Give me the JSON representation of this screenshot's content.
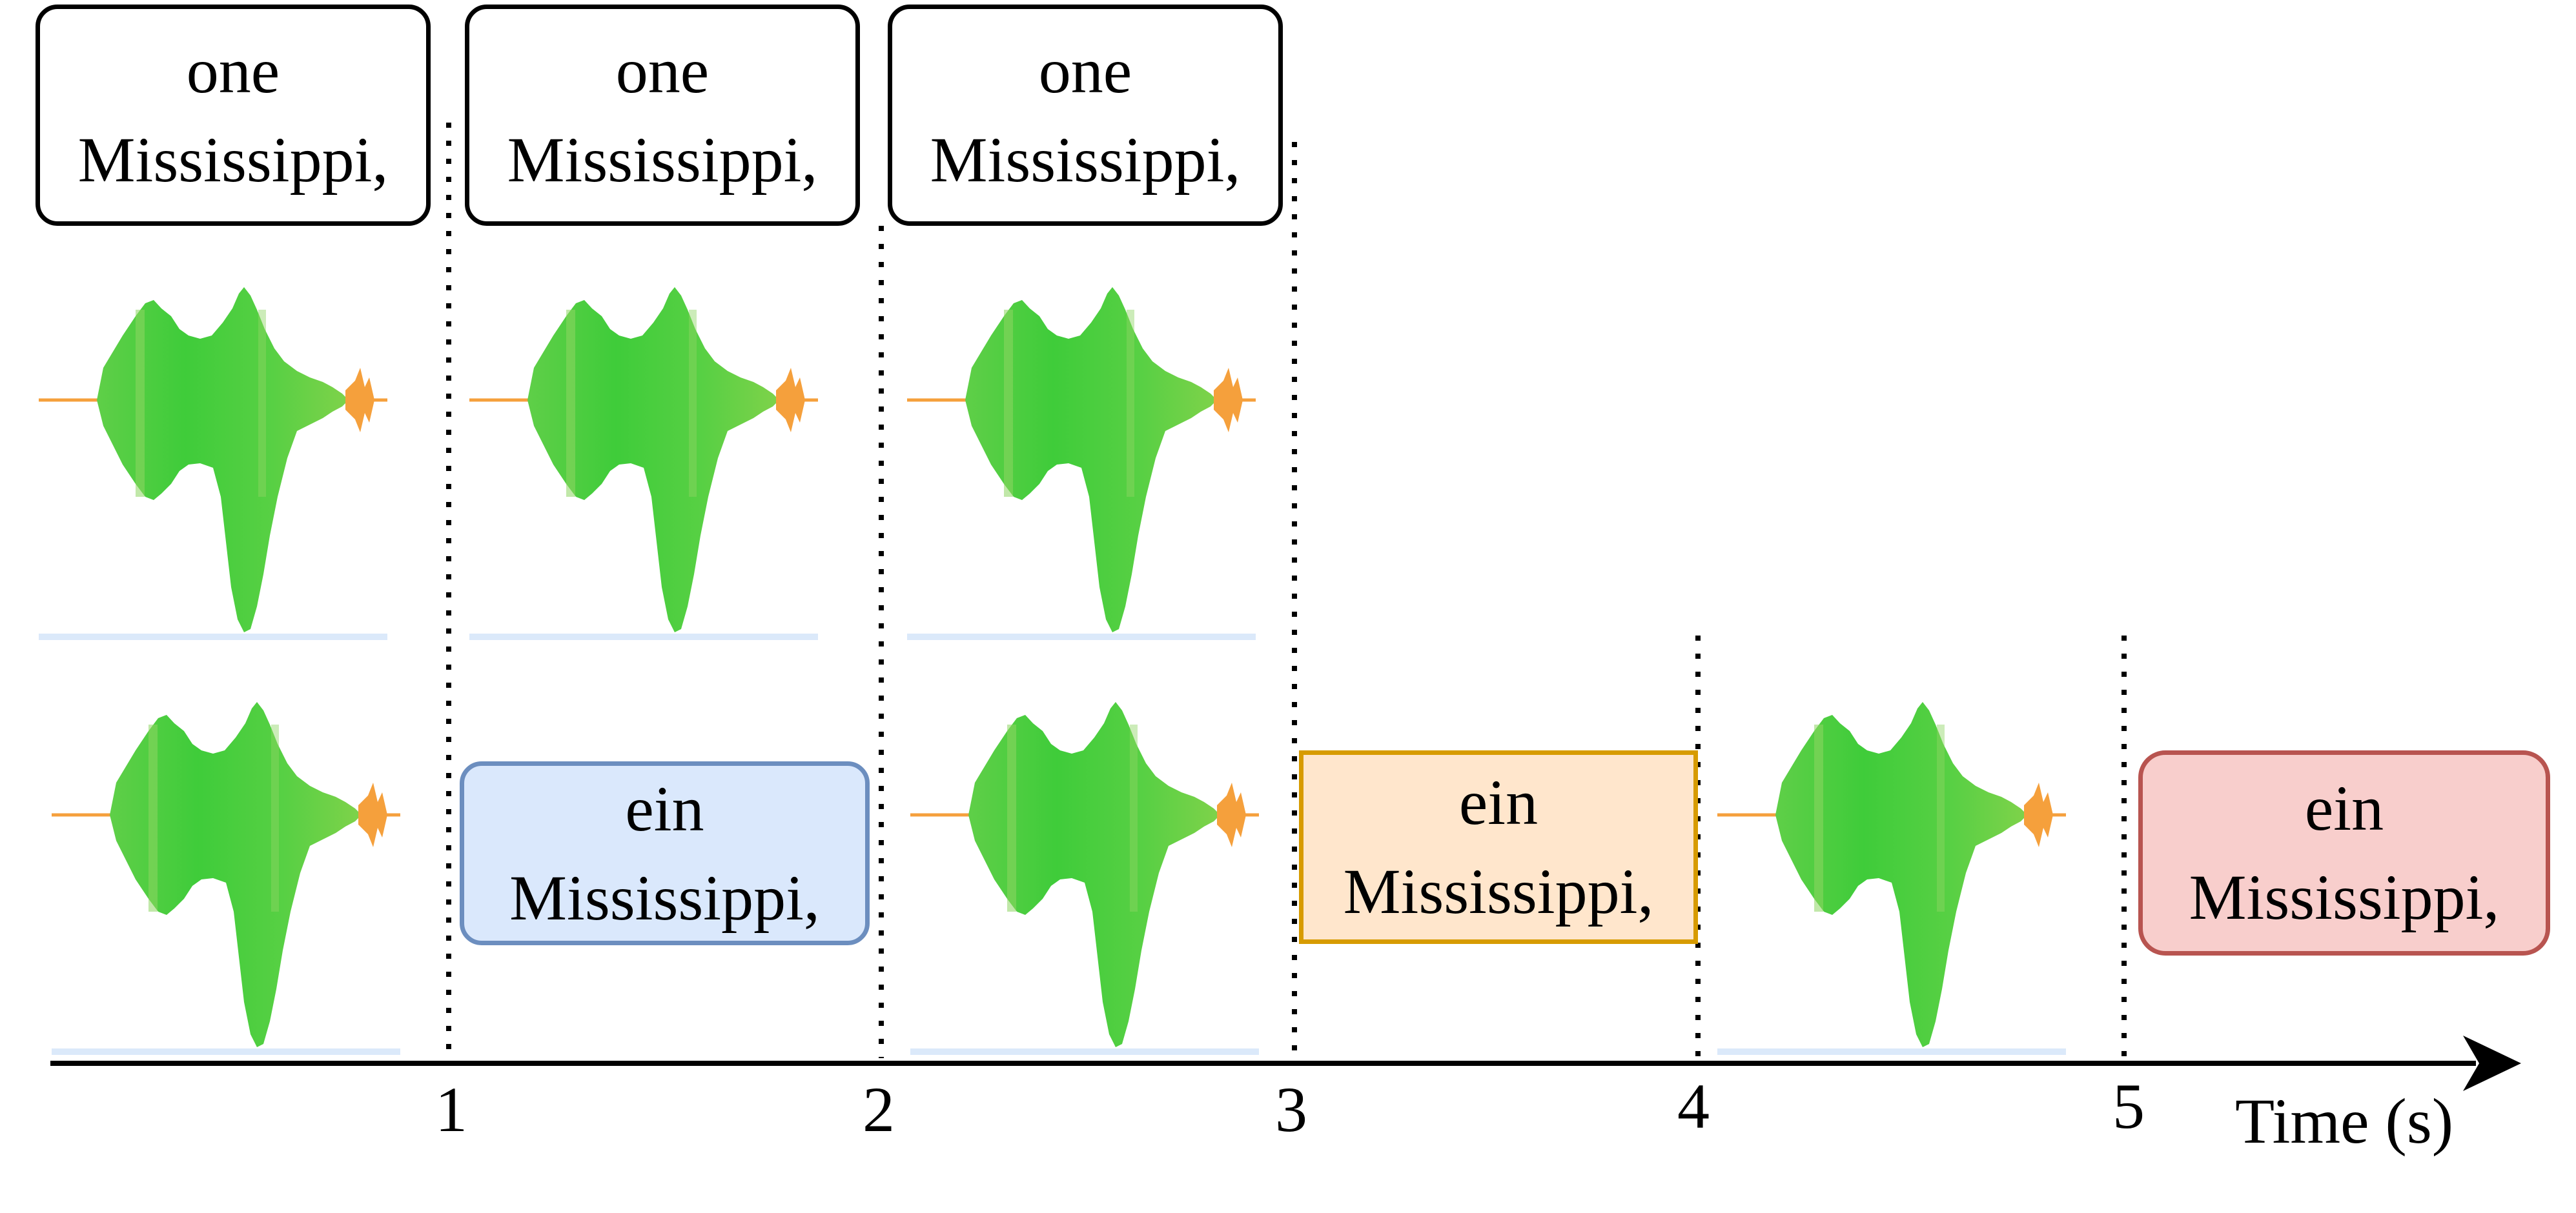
{
  "source_segments": [
    {
      "line1": "one",
      "line2": "Mississippi,"
    },
    {
      "line1": "one",
      "line2": "Mississippi,"
    },
    {
      "line1": "one",
      "line2": "Mississippi,"
    }
  ],
  "target_segments": [
    {
      "line1": "ein",
      "line2": "Mississippi,",
      "fill": "#dae8fc",
      "stroke": "#6c8ebf",
      "shape": "rounded"
    },
    {
      "line1": "ein",
      "line2": "Mississippi,",
      "fill": "#ffe6cc",
      "stroke": "#d79b00",
      "shape": "square"
    },
    {
      "line1": "ein",
      "line2": "Mississippi,",
      "fill": "#f8cecc",
      "stroke": "#b85450",
      "shape": "rounded"
    }
  ],
  "axis": {
    "label": "Time (s)",
    "ticks": [
      "1",
      "2",
      "3",
      "4",
      "5"
    ]
  },
  "waveform_colors": {
    "body": "#4ccf3a",
    "baseline": "#f5a03c",
    "underline": "#dbe9fa"
  }
}
